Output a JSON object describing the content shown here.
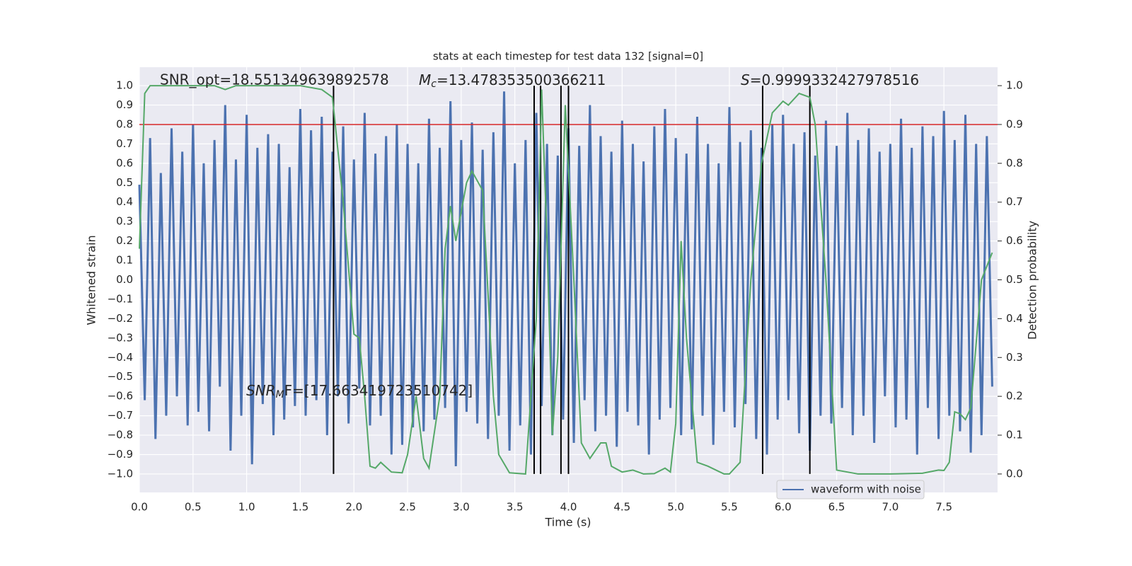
{
  "chart_data": {
    "type": "line",
    "title": "stats at each timestep for test data 132 [signal=0]",
    "xlabel": "Time (s)",
    "ylabel": "Whitened strain",
    "y2label": "Detection probability",
    "xlim": [
      0,
      8.0
    ],
    "xticks": [
      {
        "value": 0,
        "label": "0.0"
      },
      0.5,
      {
        "value": 1,
        "label": "1.0"
      },
      1.5,
      {
        "value": 2,
        "label": "2.0"
      },
      2.5,
      {
        "value": 3,
        "label": "3.0"
      },
      3.5,
      {
        "value": 4,
        "label": "4.0"
      },
      4.5,
      {
        "value": 5,
        "label": "5.0"
      },
      5.5,
      {
        "value": 6,
        "label": "6.0"
      },
      6.5,
      {
        "value": 7,
        "label": "7.0"
      },
      7.5
    ],
    "ylim": [
      -1.095,
      1.095
    ],
    "yticks": [
      {
        "value": -1,
        "label": "−1.0"
      },
      {
        "value": -0.9,
        "label": "−0.9"
      },
      {
        "value": -0.8,
        "label": "−0.8"
      },
      {
        "value": -0.7,
        "label": "−0.7"
      },
      {
        "value": -0.6,
        "label": "−0.6"
      },
      {
        "value": -0.5,
        "label": "−0.5"
      },
      {
        "value": -0.4,
        "label": "−0.4"
      },
      {
        "value": -0.3,
        "label": "−0.3"
      },
      {
        "value": -0.2,
        "label": "−0.2"
      },
      {
        "value": -0.1,
        "label": "−0.1"
      },
      {
        "value": 0,
        "label": "0.0"
      },
      0.1,
      0.2,
      0.3,
      0.4,
      0.5,
      0.6,
      0.7,
      0.8,
      0.9,
      {
        "value": 1,
        "label": "1.0"
      }
    ],
    "y2lim": [
      -0.0475,
      1.0475
    ],
    "y2ticks": [
      {
        "value": 0,
        "label": "0.0"
      },
      0.1,
      0.2,
      0.3,
      0.4,
      0.5,
      0.6,
      0.7,
      0.8,
      0.9,
      {
        "value": 1,
        "label": "1.0"
      }
    ],
    "grid": true,
    "legend": "lower right",
    "series": [
      {
        "name": "waveform with noise",
        "color": "#4c72b0",
        "x": [
          0,
          0.05,
          0.1,
          0.15,
          0.2,
          0.25,
          0.3,
          0.35,
          0.4,
          0.45,
          0.5,
          0.55,
          0.6,
          0.65,
          0.7,
          0.75,
          0.8,
          0.85,
          0.9,
          0.95,
          1,
          1.05,
          1.1,
          1.15,
          1.2,
          1.25,
          1.3,
          1.35,
          1.4,
          1.45,
          1.5,
          1.55,
          1.6,
          1.65,
          1.7,
          1.75,
          1.8,
          1.85,
          1.9,
          1.95,
          2,
          2.05,
          2.1,
          2.15,
          2.2,
          2.25,
          2.3,
          2.35,
          2.4,
          2.45,
          2.5,
          2.55,
          2.6,
          2.65,
          2.7,
          2.75,
          2.8,
          2.85,
          2.9,
          2.95,
          3,
          3.05,
          3.1,
          3.15,
          3.2,
          3.25,
          3.3,
          3.35,
          3.4,
          3.45,
          3.5,
          3.55,
          3.6,
          3.65,
          3.7,
          3.75,
          3.8,
          3.85,
          3.9,
          3.95,
          4,
          4.05,
          4.1,
          4.15,
          4.2,
          4.25,
          4.3,
          4.35,
          4.4,
          4.45,
          4.5,
          4.55,
          4.6,
          4.65,
          4.7,
          4.75,
          4.8,
          4.85,
          4.9,
          4.95,
          5,
          5.05,
          5.1,
          5.15,
          5.2,
          5.25,
          5.3,
          5.35,
          5.4,
          5.45,
          5.5,
          5.55,
          5.6,
          5.65,
          5.7,
          5.75,
          5.8,
          5.85,
          5.9,
          5.95,
          6,
          6.05,
          6.1,
          6.15,
          6.2,
          6.25,
          6.3,
          6.35,
          6.4,
          6.45,
          6.5,
          6.55,
          6.6,
          6.65,
          6.7,
          6.75,
          6.8,
          6.85,
          6.9,
          6.95,
          7,
          7.05,
          7.1,
          7.15,
          7.2,
          7.25,
          7.3,
          7.35,
          7.4,
          7.45,
          7.5,
          7.55,
          7.6,
          7.65,
          7.7,
          7.75,
          7.8,
          7.85,
          7.9,
          7.95
        ],
        "values": [
          0.49,
          -0.62,
          0.73,
          -0.82,
          0.55,
          -0.7,
          0.78,
          -0.6,
          0.66,
          -0.75,
          0.8,
          -0.68,
          0.6,
          -0.78,
          0.72,
          -0.55,
          0.9,
          -0.88,
          0.62,
          -0.7,
          0.85,
          -0.95,
          0.68,
          -0.64,
          0.75,
          -0.8,
          0.7,
          -0.72,
          0.58,
          -0.65,
          0.88,
          -0.7,
          0.77,
          -0.62,
          0.84,
          -0.8,
          0.66,
          -0.6,
          0.79,
          -0.74,
          0.62,
          -0.56,
          0.86,
          -0.75,
          0.65,
          -0.7,
          0.74,
          -0.9,
          0.8,
          -0.85,
          0.7,
          -0.76,
          0.6,
          -0.78,
          0.83,
          -0.72,
          0.68,
          -0.66,
          0.92,
          -0.96,
          0.72,
          -0.68,
          0.81,
          -0.74,
          0.67,
          -0.82,
          0.76,
          -0.7,
          0.97,
          -0.88,
          0.6,
          -0.75,
          0.72,
          -0.9,
          0.86,
          -0.65,
          0.7,
          -0.8,
          0.64,
          -0.72,
          0.78,
          -0.84,
          0.69,
          -0.62,
          0.9,
          -0.78,
          0.74,
          -0.7,
          0.66,
          -0.86,
          0.82,
          -0.68,
          0.7,
          -0.75,
          0.61,
          -0.9,
          0.79,
          -0.72,
          0.88,
          -0.66,
          0.73,
          -0.8,
          0.65,
          -0.77,
          0.84,
          -0.7,
          0.7,
          -0.85,
          0.6,
          -0.68,
          0.89,
          -0.76,
          0.71,
          -0.64,
          0.77,
          -0.82,
          0.68,
          -0.9,
          0.8,
          -0.72,
          0.85,
          -0.62,
          0.7,
          -0.79,
          0.76,
          -0.88,
          0.64,
          -0.7,
          0.82,
          -0.74,
          0.69,
          -0.66,
          0.86,
          -0.8,
          0.72,
          -0.7,
          0.78,
          -0.84,
          0.66,
          -0.6,
          0.7,
          -0.76,
          0.83,
          -0.72,
          0.68,
          -0.9,
          0.79,
          -0.66,
          0.74,
          -0.82,
          0.87,
          -0.7,
          0.72,
          -0.78,
          0.85,
          -0.89,
          0.7,
          -0.8,
          0.74,
          -0.55
        ]
      }
    ],
    "probability": {
      "color": "#55a868",
      "axis": "y2",
      "x": [
        0,
        0.05,
        0.1,
        0.3,
        0.5,
        0.7,
        0.8,
        0.9,
        1.2,
        1.5,
        1.7,
        1.8,
        1.9,
        2.0,
        2.05,
        2.1,
        2.15,
        2.2,
        2.25,
        2.35,
        2.45,
        2.5,
        2.58,
        2.65,
        2.7,
        2.8,
        2.85,
        2.9,
        2.95,
        3.05,
        3.1,
        3.2,
        3.3,
        3.35,
        3.45,
        3.55,
        3.6,
        3.7,
        3.75,
        3.8,
        3.85,
        3.9,
        3.97,
        4.05,
        4.12,
        4.2,
        4.3,
        4.35,
        4.4,
        4.5,
        4.6,
        4.7,
        4.8,
        4.9,
        4.95,
        5.0,
        5.05,
        5.1,
        5.2,
        5.3,
        5.45,
        5.5,
        5.6,
        5.7,
        5.8,
        5.9,
        6.0,
        6.05,
        6.15,
        6.25,
        6.3,
        6.4,
        6.5,
        6.6,
        6.7,
        7.0,
        7.3,
        7.45,
        7.5,
        7.55,
        7.6,
        7.65,
        7.7,
        7.75,
        7.85,
        7.95
      ],
      "values": [
        0.58,
        0.98,
        1.0,
        1.0,
        1.0,
        1.0,
        0.99,
        1.0,
        1.0,
        1.0,
        0.99,
        0.97,
        0.7,
        0.36,
        0.35,
        0.2,
        0.02,
        0.015,
        0.03,
        0.005,
        0.003,
        0.05,
        0.2,
        0.04,
        0.015,
        0.2,
        0.58,
        0.69,
        0.6,
        0.75,
        0.78,
        0.73,
        0.2,
        0.05,
        0.003,
        0.001,
        0.0,
        0.4,
        0.99,
        0.6,
        0.1,
        0.3,
        0.95,
        0.5,
        0.08,
        0.04,
        0.08,
        0.08,
        0.02,
        0.005,
        0.01,
        0.0,
        0.001,
        0.015,
        0.005,
        0.13,
        0.6,
        0.35,
        0.03,
        0.02,
        0.0,
        0.0,
        0.03,
        0.5,
        0.8,
        0.93,
        0.96,
        0.95,
        0.98,
        0.97,
        0.9,
        0.5,
        0.01,
        0.005,
        0.0,
        0.0,
        0.002,
        0.01,
        0.009,
        0.03,
        0.16,
        0.155,
        0.14,
        0.17,
        0.5,
        0.57
      ]
    },
    "vlines": {
      "color": "#000000",
      "x": [
        1.81,
        3.68,
        3.74,
        3.93,
        4.0,
        5.81,
        6.25
      ],
      "ymin": -1,
      "ymax": 1
    },
    "hline": {
      "color": "#d62728",
      "y": 0.8
    },
    "annotations": {
      "snr_opt": "SNR_opt=18.551349639892578",
      "mc": {
        "symbol": "M",
        "subscript": "c",
        "text": "=13.478353500366211"
      },
      "s": {
        "symbol": "S",
        "text": "=0.9999332427978516"
      },
      "snr_mf": {
        "symbol": "SNR",
        "subscript": "M",
        "text": "F=[17.663419723510742]"
      }
    }
  }
}
